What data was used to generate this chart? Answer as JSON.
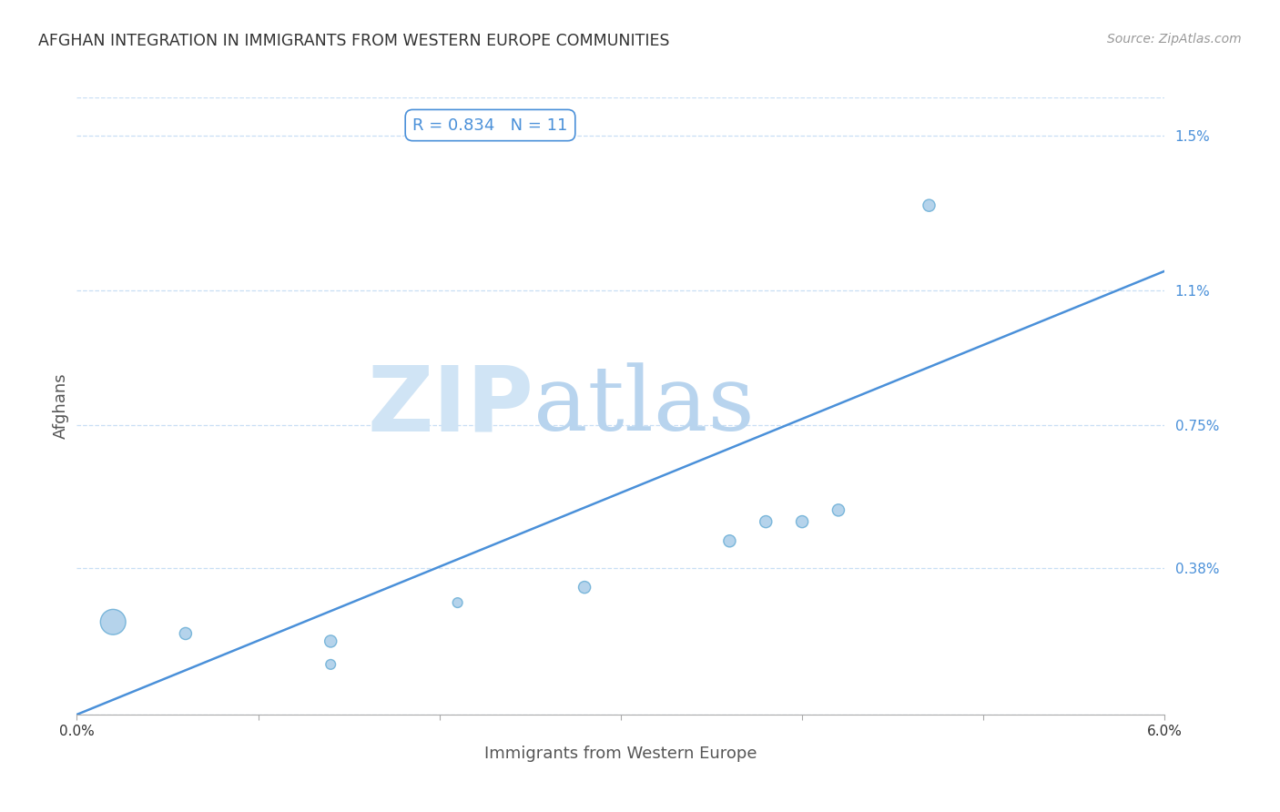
{
  "title": "AFGHAN INTEGRATION IN IMMIGRANTS FROM WESTERN EUROPE COMMUNITIES",
  "source": "Source: ZipAtlas.com",
  "xlabel": "Immigrants from Western Europe",
  "ylabel": "Afghans",
  "R": 0.834,
  "N": 11,
  "xlim": [
    0.0,
    0.06
  ],
  "ylim": [
    0.0,
    0.016
  ],
  "yticks": [
    0.0,
    0.0038,
    0.0075,
    0.011,
    0.015
  ],
  "ytick_labels": [
    "",
    "0.38%",
    "0.75%",
    "1.1%",
    "1.5%"
  ],
  "scatter_x": [
    0.002,
    0.006,
    0.014,
    0.014,
    0.021,
    0.028,
    0.036,
    0.038,
    0.04,
    0.042,
    0.047
  ],
  "scatter_y": [
    0.0024,
    0.0021,
    0.0019,
    0.0013,
    0.0029,
    0.0033,
    0.0045,
    0.005,
    0.005,
    0.0053,
    0.0132
  ],
  "scatter_sizes": [
    400,
    90,
    90,
    60,
    60,
    90,
    90,
    90,
    90,
    90,
    90
  ],
  "line_x": [
    0.0,
    0.06
  ],
  "line_y": [
    0.0,
    0.0115
  ],
  "scatter_color": "#a8cce8",
  "scatter_edge_color": "#6aaed6",
  "line_color": "#4a90d9",
  "bg_color": "#ffffff",
  "title_color": "#333333",
  "axis_label_color": "#555555",
  "tick_label_color": "#4a90d9",
  "annotation_box_color": "#ffffff",
  "annotation_border_color": "#4a90d9",
  "annotation_text_color": "#4a90d9",
  "watermark_zip_color": "#d0e4f5",
  "watermark_atlas_color": "#b8d4ee",
  "grid_color": "#c8dff5",
  "grid_style": "--"
}
